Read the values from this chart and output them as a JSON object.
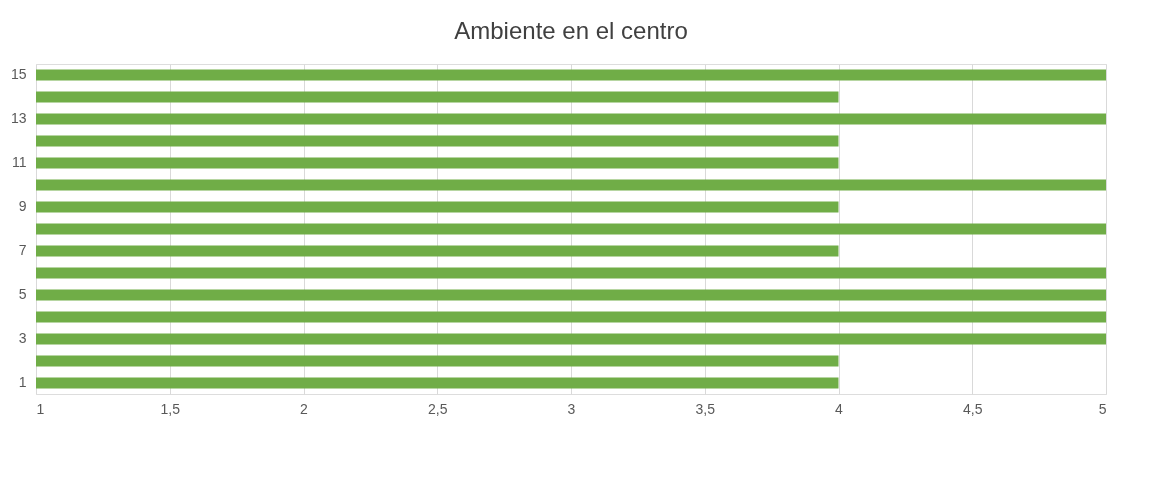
{
  "chart_data": {
    "type": "bar",
    "orientation": "horizontal",
    "title": "Ambiente en el centro",
    "categories": [
      "15",
      null,
      "13",
      null,
      "11",
      null,
      "9",
      null,
      "7",
      null,
      "5",
      null,
      "3",
      null,
      "1"
    ],
    "values": [
      5,
      4,
      5,
      4,
      4,
      5,
      4,
      5,
      4,
      5,
      5,
      5,
      5,
      4,
      4
    ],
    "color": "#70ad47",
    "xlim": [
      1,
      5
    ],
    "xticks": [
      1,
      {
        "value": 1.5,
        "label": "1,5"
      },
      2,
      {
        "value": 2.5,
        "label": "2,5"
      },
      3,
      {
        "value": 3.5,
        "label": "3,5"
      },
      4,
      {
        "value": 4.5,
        "label": "4,5"
      },
      5
    ],
    "grid": "x"
  }
}
